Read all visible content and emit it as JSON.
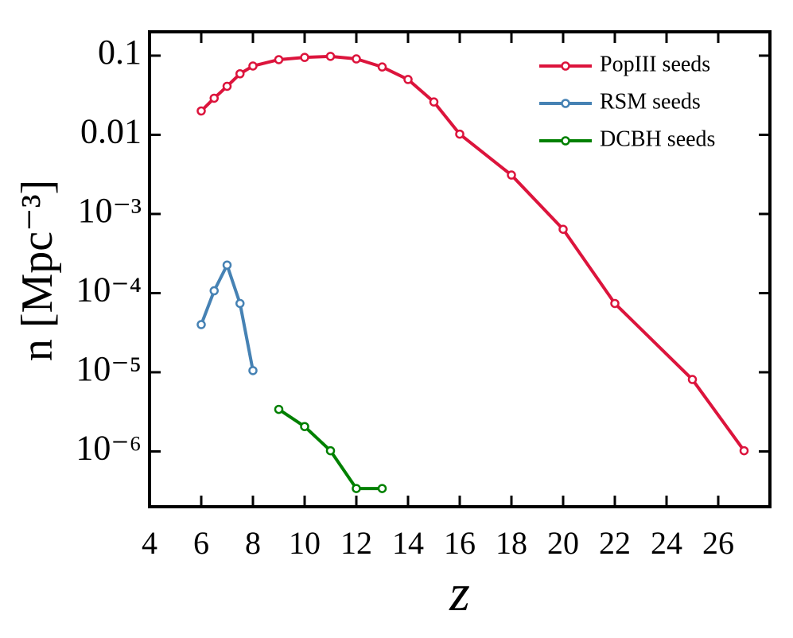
{
  "chart_data": {
    "type": "line",
    "xlabel": "z",
    "ylabel": "n [Mpc⁻³]",
    "xlim": [
      4,
      28
    ],
    "xticks": [
      4,
      6,
      8,
      10,
      12,
      14,
      16,
      18,
      20,
      22,
      24,
      26
    ],
    "ylim": [
      2e-07,
      0.2
    ],
    "log_y": true,
    "yticks": [
      0.1,
      0.01,
      {
        "value": 0.001,
        "label": "10⁻³"
      },
      {
        "value": 0.0001,
        "label": "10⁻⁴"
      },
      {
        "value": 1e-05,
        "label": "10⁻⁵"
      },
      {
        "value": 1e-06,
        "label": "10⁻⁶"
      }
    ],
    "legend": "upper right",
    "series": [
      {
        "name": "PopIII seeds",
        "color": "#dc143c",
        "x": [
          6,
          6.5,
          7,
          7.5,
          8,
          9,
          10,
          11,
          12,
          13,
          14,
          15,
          16,
          18,
          20,
          22,
          25,
          27
        ],
        "values": [
          0.02,
          0.029,
          0.041,
          0.059,
          0.074,
          0.089,
          0.095,
          0.098,
          0.091,
          0.072,
          0.05,
          0.026,
          0.0102,
          0.0031,
          0.00064,
          7.4e-05,
          8.1e-06,
          1.02e-06
        ]
      },
      {
        "name": "RSM seeds",
        "color": "#4682b4",
        "x": [
          6,
          6.5,
          7,
          7.5,
          8
        ],
        "values": [
          4e-05,
          0.000107,
          0.000226,
          7.4e-05,
          1.05e-05
        ]
      },
      {
        "name": "DCBH seeds",
        "color": "#008000",
        "x": [
          9,
          10,
          11,
          12,
          13
        ],
        "values": [
          3.4e-06,
          2.06e-06,
          1.02e-06,
          3.4e-07,
          3.4e-07
        ]
      }
    ]
  }
}
